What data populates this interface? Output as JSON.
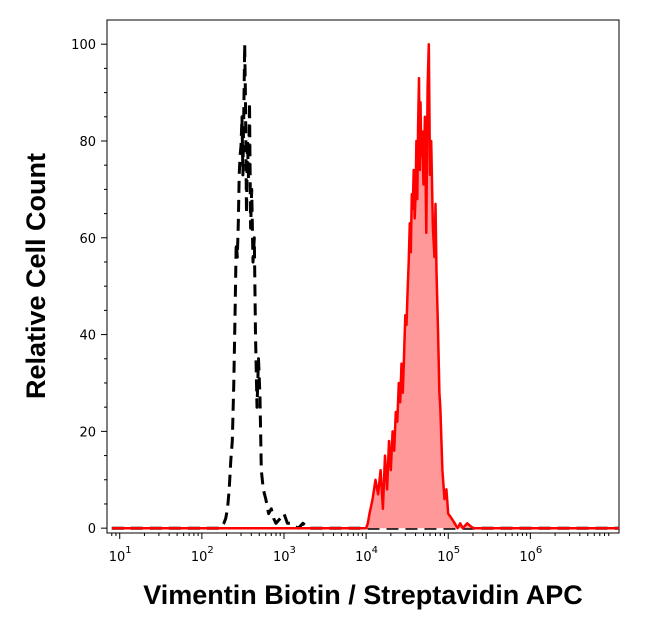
{
  "chart_data": {
    "type": "area",
    "xlabel": "Vimentin Biotin / Streptavidin APC",
    "ylabel": "Relative Cell Count",
    "x_scale": "log",
    "xlim": [
      7,
      12000000
    ],
    "ylim": [
      -1,
      105
    ],
    "x_ticks": [
      {
        "value": 10,
        "base": "10",
        "exp": "1"
      },
      {
        "value": 100,
        "base": "10",
        "exp": "2"
      },
      {
        "value": 1000,
        "base": "10",
        "exp": "3"
      },
      {
        "value": 10000,
        "base": "10",
        "exp": "4"
      },
      {
        "value": 100000,
        "base": "10",
        "exp": "5"
      },
      {
        "value": 1000000,
        "base": "10",
        "exp": "6"
      }
    ],
    "y_ticks": [
      {
        "value": 0,
        "label": "0"
      },
      {
        "value": 20,
        "label": "20"
      },
      {
        "value": 40,
        "label": "40"
      },
      {
        "value": 60,
        "label": "60"
      },
      {
        "value": 80,
        "label": "80"
      },
      {
        "value": 100,
        "label": "100"
      }
    ],
    "series": [
      {
        "style": "dashed",
        "color": "#000000",
        "fill": "none",
        "x": [
          8,
          100,
          150,
          170,
          185,
          195,
          205,
          215,
          225,
          235,
          245,
          255,
          262,
          270,
          278,
          285,
          292,
          300,
          308,
          316,
          324,
          332,
          340,
          350,
          360,
          370,
          380,
          392,
          405,
          420,
          435,
          450,
          470,
          490,
          510,
          530,
          560,
          600,
          650,
          700,
          750,
          800,
          900,
          1000,
          1100,
          1200,
          1300,
          1500,
          1700,
          2000,
          2500,
          4000,
          10000,
          12000000
        ],
        "y": [
          0,
          0,
          0,
          0,
          1,
          2,
          4,
          8,
          14,
          18,
          30,
          46,
          59,
          56,
          63,
          73,
          77,
          79,
          85,
          73,
          86,
          100,
          88,
          65,
          80,
          72,
          88,
          62,
          70,
          55,
          60,
          40,
          25,
          35,
          27,
          12,
          8,
          6,
          3,
          4,
          2,
          1,
          2,
          3,
          1,
          1,
          0.5,
          0,
          1,
          0,
          0,
          0,
          0,
          0
        ]
      },
      {
        "style": "solid",
        "color": "#ff0000",
        "fill": "#ff9999",
        "x": [
          8,
          10000,
          10500,
          11000,
          12000,
          13000,
          14000,
          15000,
          16000,
          17000,
          18000,
          19000,
          20000,
          21000,
          22000,
          23000,
          24000,
          25000,
          26000,
          27000,
          28000,
          29000,
          30000,
          31000,
          32000,
          33000,
          34000,
          35000,
          36000,
          37000,
          38000,
          39000,
          40000,
          41000,
          42000,
          43000,
          44000,
          45000,
          46000,
          47000,
          48000,
          50000,
          52000,
          54000,
          56000,
          58000,
          60000,
          62000,
          65000,
          68000,
          70000,
          72000,
          75000,
          78000,
          80000,
          85000,
          90000,
          95000,
          100000,
          110000,
          120000,
          130000,
          140000,
          150000,
          170000,
          200000,
          250000,
          300000,
          400000,
          600000,
          800000,
          1000000,
          12000000
        ],
        "y": [
          0,
          0,
          1,
          3,
          6,
          10,
          7,
          12,
          4,
          15,
          8,
          18,
          12,
          20,
          16,
          24,
          22,
          30,
          26,
          34,
          28,
          36,
          44,
          42,
          49,
          55,
          63,
          57,
          69,
          66,
          74,
          64,
          69,
          80,
          68,
          83,
          93,
          74,
          88,
          77,
          82,
          71,
          85,
          61,
          91,
          100,
          73,
          80,
          62,
          56,
          67,
          53,
          41,
          28,
          25,
          12,
          6,
          8,
          3,
          2,
          1,
          0,
          1,
          0,
          1,
          0,
          0,
          0,
          0,
          0,
          0,
          0,
          0
        ]
      }
    ]
  }
}
